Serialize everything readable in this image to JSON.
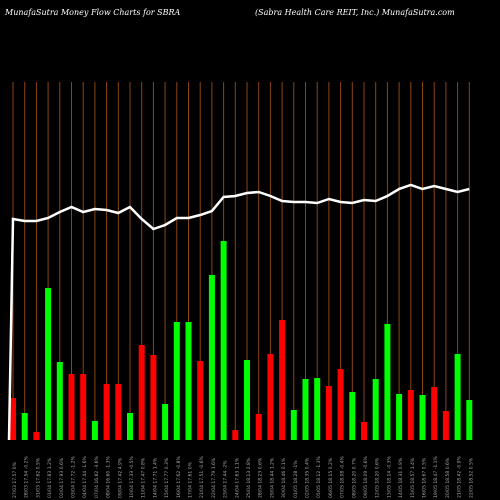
{
  "header": {
    "left": "MunafaSutra  Money Flow  Charts for SBRA",
    "right": "(Sabra  Health Care    REIT,  Inc.) MunafaSutra.com"
  },
  "colors": {
    "background": "#000000",
    "gridline": "#8b4513",
    "up": "#00ff00",
    "down": "#ff0000",
    "price_line": "#ffffff",
    "label": "#aaaaaa"
  },
  "chart_data": {
    "type": "bar+line",
    "title": "MunafaSutra  Money Flow  Charts for SBRA",
    "x": [
      "27/03/2025",
      "28/03/2025",
      "31/03/2025",
      "01/04/2025",
      "02/04/2025",
      "03/04/2025",
      "04/04/2025",
      "07/04/2025",
      "08/04/2025",
      "09/04/2025",
      "10/04/2025",
      "11/04/2025",
      "14/04/2025",
      "15/04/2025",
      "16/04/2025",
      "17/04/2025",
      "21/04/2025",
      "22/04/2025",
      "23/04/2025",
      "24/04/2025",
      "25/04/2025",
      "28/04/2025",
      "29/04/2025",
      "30/04/2025",
      "01/05/2025",
      "02/05/2025",
      "05/05/2025",
      "06/05/2025",
      "07/05/2025",
      "08/05/2025",
      "09/05/2025",
      "12/05/2025",
      "13/05/2025",
      "14/05/2025",
      "15/05/2025",
      "16/05/2025",
      "19/05/2025",
      "20/05/2025",
      "21/05/2025",
      "22/05/2025"
    ],
    "tick_labels": [
      "27/03 17.57 0%",
      "28/03 17.54 -0.2%",
      "31/03 17.62 0.5%",
      "01/04 17.83 1.2%",
      "02/04 17.93 0.6%",
      "03/04 17.72 -1.2%",
      "04/04 17.44 -1.6%",
      "07/04 16.82 -3.6%",
      "08/04 16.60 -1.3%",
      "09/04 17.42 4.9%",
      "10/04 17.33 -0.5%",
      "11/04 17.47 0.8%",
      "14/04 17.71 1.4%",
      "15/04 17.77 0.3%",
      "16/04 17.62 -0.8%",
      "17/04 17.61 0%",
      "21/04 17.51 -0.6%",
      "22/04 17.79 1.6%",
      "23/04 17.44 -2%",
      "24/04 17.63 1.1%",
      "25/04 18.13 2.8%",
      "28/04 18.23 0.6%",
      "29/04 18.44 1.2%",
      "30/04 18.46 0.1%",
      "01/05 18.28 -1%",
      "02/05 18.35 0.4%",
      "05/05 18.12 -1.3%",
      "06/05 18.15 0.2%",
      "07/05 18.08 -0.4%",
      "08/05 18.20 0.7%",
      "09/05 18.09 -0.6%",
      "12/05 18.20 0.6%",
      "13/05 18.14 -0.3%",
      "14/05 18.31 0.9%",
      "15/05 18.57 1.4%",
      "16/05 18.67 0.5%",
      "19/05 18.47 -1.1%",
      "20/05 18.58 0.6%",
      "21/05 18.42 -0.9%",
      "22/05 18.52 0.5%"
    ],
    "series": [
      {
        "type": "bar",
        "values": [
          42,
          27,
          8,
          152,
          78,
          66,
          66,
          19,
          56,
          56,
          27,
          95,
          85,
          36,
          118,
          118,
          79,
          165,
          199,
          10,
          80,
          26,
          86,
          120,
          30,
          61,
          62,
          54,
          71,
          48,
          18,
          61,
          116,
          46,
          50,
          45,
          53,
          29,
          86,
          40
        ],
        "direction": [
          "down",
          "up",
          "down",
          "up",
          "up",
          "down",
          "down",
          "up",
          "down",
          "down",
          "up",
          "down",
          "down",
          "up",
          "up",
          "up",
          "down",
          "up",
          "up",
          "down",
          "up",
          "down",
          "down",
          "down",
          "up",
          "up",
          "up",
          "down",
          "down",
          "up",
          "down",
          "up",
          "up",
          "up",
          "down",
          "up",
          "down",
          "down",
          "up",
          "up"
        ]
      },
      {
        "type": "line",
        "values": [
          17.57,
          17.54,
          17.62,
          17.83,
          17.93,
          17.72,
          17.44,
          16.82,
          16.6,
          17.42,
          17.33,
          17.47,
          17.71,
          17.77,
          17.62,
          17.61,
          17.51,
          17.79,
          17.44,
          17.63,
          18.13,
          18.23,
          18.44,
          18.46,
          18.28,
          18.35,
          18.12,
          18.15,
          18.08,
          18.2,
          18.09,
          18.2,
          18.14,
          18.31,
          18.57,
          18.67,
          18.47,
          18.58,
          18.42,
          18.52
        ]
      }
    ],
    "line_points": [
      219,
      221,
      221,
      218,
      212,
      207,
      212,
      209,
      210,
      213,
      207,
      219,
      229,
      225,
      218,
      218,
      215,
      211,
      197,
      196,
      193,
      192,
      196,
      201,
      202,
      202,
      203,
      199,
      202,
      203,
      200,
      201,
      196,
      189,
      185,
      189,
      186,
      189,
      192,
      189
    ]
  }
}
